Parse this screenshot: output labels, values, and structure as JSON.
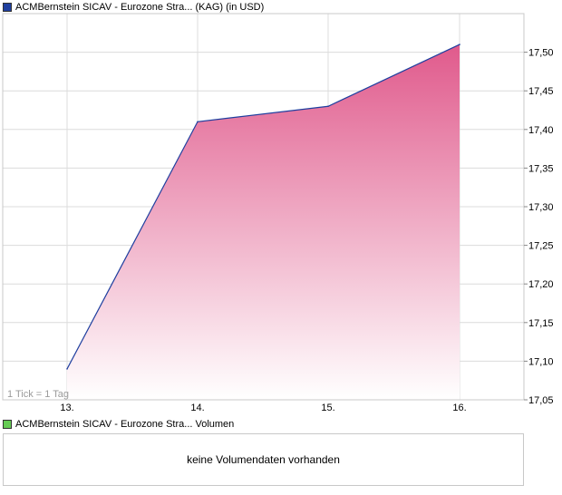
{
  "price_legend": {
    "label": "ACMBernstein SICAV - Eurozone Stra... (KAG) (in USD)",
    "color": "#1f3f9f"
  },
  "volume_legend": {
    "label": "ACMBernstein SICAV - Eurozone Stra... Volumen",
    "color": "#66cc55"
  },
  "tick_note": "1 Tick = 1 Tag",
  "volume_panel": {
    "message": "keine Volumendaten vorhanden"
  },
  "chart_data": {
    "type": "area",
    "x": [
      "13.",
      "14.",
      "15.",
      "16."
    ],
    "series": [
      {
        "values": [
          17.09,
          17.41,
          17.43,
          17.51
        ]
      }
    ],
    "y_ticks": [
      "17,05",
      "17,10",
      "17,15",
      "17,20",
      "17,25",
      "17,30",
      "17,35",
      "17,40",
      "17,45",
      "17,50"
    ],
    "ylim": [
      17.05,
      17.55
    ],
    "grid": true,
    "y_axis_position": "right",
    "colors": {
      "line": "#1f3f9f",
      "fill_top": "#e05a8c",
      "fill_bottom": "#ffffff",
      "grid": "#dcdcdc",
      "frame": "#c8c8c8"
    }
  }
}
